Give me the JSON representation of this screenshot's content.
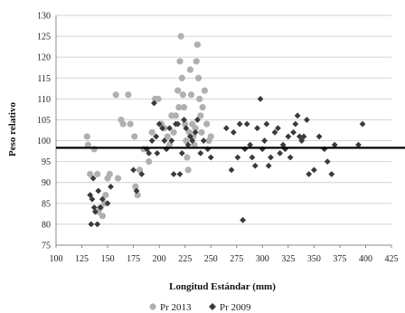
{
  "chart_data": {
    "type": "scatter",
    "title": "",
    "xlabel": "Longitud Estándar (mm)",
    "ylabel": "Peso relativo",
    "xlim": [
      100,
      425
    ],
    "ylim": [
      75,
      130
    ],
    "xticks": [
      100,
      125,
      150,
      175,
      200,
      225,
      250,
      275,
      300,
      325,
      350,
      375,
      400,
      425
    ],
    "yticks": [
      75,
      80,
      85,
      90,
      95,
      100,
      105,
      110,
      115,
      120,
      125,
      130
    ],
    "grid": true,
    "legend": "bottom",
    "reference_line": {
      "y": 98.3,
      "color": "#000000"
    },
    "series": [
      {
        "name": "Pr 2013",
        "marker": "circle",
        "color": "#b0b0b0",
        "points": [
          [
            130,
            101
          ],
          [
            131,
            99
          ],
          [
            133,
            92
          ],
          [
            137,
            98
          ],
          [
            140,
            92
          ],
          [
            141,
            83
          ],
          [
            143,
            84
          ],
          [
            145,
            82
          ],
          [
            147,
            85
          ],
          [
            148,
            87
          ],
          [
            150,
            91
          ],
          [
            152,
            92
          ],
          [
            158,
            111
          ],
          [
            160,
            91
          ],
          [
            163,
            105
          ],
          [
            165,
            104
          ],
          [
            170,
            111
          ],
          [
            172,
            104
          ],
          [
            176,
            101
          ],
          [
            177,
            89
          ],
          [
            179,
            87
          ],
          [
            181,
            93
          ],
          [
            185,
            98
          ],
          [
            190,
            95
          ],
          [
            193,
            102
          ],
          [
            196,
            110
          ],
          [
            199,
            110
          ],
          [
            202,
            104
          ],
          [
            205,
            103
          ],
          [
            208,
            101
          ],
          [
            210,
            99
          ],
          [
            212,
            106
          ],
          [
            214,
            102
          ],
          [
            216,
            106
          ],
          [
            218,
            112
          ],
          [
            219,
            108
          ],
          [
            220,
            119
          ],
          [
            221,
            125
          ],
          [
            222,
            115
          ],
          [
            223,
            111
          ],
          [
            224,
            108
          ],
          [
            225,
            104
          ],
          [
            226,
            100
          ],
          [
            227,
            96
          ],
          [
            228,
            93
          ],
          [
            229,
            102
          ],
          [
            230,
            117
          ],
          [
            231,
            111
          ],
          [
            232,
            104
          ],
          [
            233,
            101
          ],
          [
            234,
            99
          ],
          [
            235,
            103
          ],
          [
            236,
            119
          ],
          [
            237,
            123
          ],
          [
            238,
            115
          ],
          [
            239,
            110
          ],
          [
            240,
            106
          ],
          [
            241,
            102
          ],
          [
            242,
            108
          ],
          [
            244,
            112
          ],
          [
            246,
            104
          ],
          [
            248,
            100
          ],
          [
            250,
            101
          ]
        ]
      },
      {
        "name": "Pr 2009",
        "marker": "diamond",
        "color": "#3a3a3a",
        "points": [
          [
            133,
            87
          ],
          [
            134,
            80
          ],
          [
            135,
            86
          ],
          [
            136,
            91
          ],
          [
            137,
            84
          ],
          [
            138,
            83
          ],
          [
            140,
            80
          ],
          [
            141,
            88
          ],
          [
            143,
            84
          ],
          [
            145,
            86
          ],
          [
            150,
            85
          ],
          [
            153,
            89
          ],
          [
            175,
            93
          ],
          [
            178,
            88
          ],
          [
            183,
            92
          ],
          [
            188,
            98
          ],
          [
            190,
            97
          ],
          [
            193,
            100
          ],
          [
            195,
            109
          ],
          [
            197,
            101
          ],
          [
            198,
            97
          ],
          [
            200,
            104
          ],
          [
            203,
            103
          ],
          [
            205,
            100
          ],
          [
            207,
            98
          ],
          [
            210,
            103
          ],
          [
            212,
            100
          ],
          [
            214,
            92
          ],
          [
            216,
            104
          ],
          [
            218,
            104
          ],
          [
            220,
            92
          ],
          [
            222,
            97
          ],
          [
            224,
            105
          ],
          [
            226,
            103
          ],
          [
            228,
            99
          ],
          [
            230,
            101
          ],
          [
            232,
            100
          ],
          [
            235,
            102
          ],
          [
            237,
            105
          ],
          [
            240,
            97
          ],
          [
            243,
            100
          ],
          [
            247,
            98
          ],
          [
            250,
            96
          ],
          [
            265,
            103
          ],
          [
            270,
            93
          ],
          [
            272,
            102
          ],
          [
            276,
            96
          ],
          [
            278,
            104
          ],
          [
            281,
            81
          ],
          [
            283,
            98
          ],
          [
            285,
            104
          ],
          [
            288,
            99
          ],
          [
            290,
            96
          ],
          [
            293,
            94
          ],
          [
            295,
            103
          ],
          [
            298,
            110
          ],
          [
            300,
            98
          ],
          [
            302,
            100
          ],
          [
            304,
            104
          ],
          [
            306,
            94
          ],
          [
            308,
            96
          ],
          [
            312,
            102
          ],
          [
            315,
            103
          ],
          [
            317,
            97
          ],
          [
            320,
            99
          ],
          [
            322,
            98
          ],
          [
            325,
            101
          ],
          [
            327,
            96
          ],
          [
            330,
            102
          ],
          [
            332,
            104
          ],
          [
            334,
            106
          ],
          [
            336,
            101
          ],
          [
            338,
            100
          ],
          [
            340,
            101
          ],
          [
            343,
            105
          ],
          [
            345,
            92
          ],
          [
            350,
            93
          ],
          [
            355,
            101
          ],
          [
            360,
            98
          ],
          [
            363,
            95
          ],
          [
            367,
            92
          ],
          [
            370,
            99
          ],
          [
            393,
            99
          ],
          [
            397,
            104
          ]
        ]
      }
    ]
  }
}
